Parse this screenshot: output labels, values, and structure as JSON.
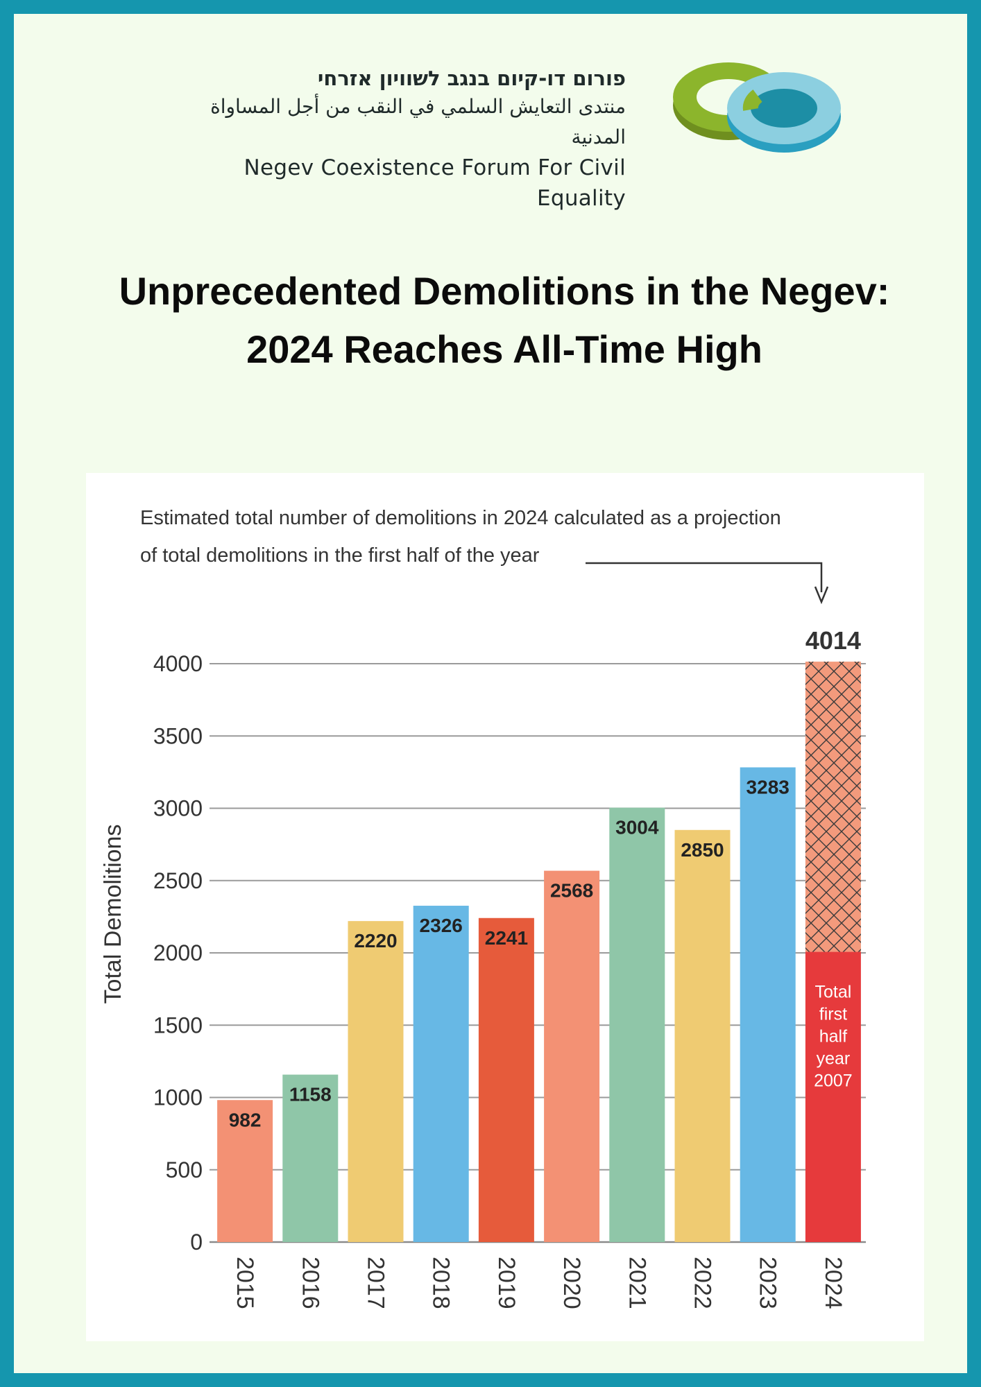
{
  "organization": {
    "name_hebrew": "פורום דו-קיום בנגב לשוויון אזרחי",
    "name_arabic": "منتدى التعايش السلمي في النقب من أجل المساواة المدنية",
    "name_english": "Negev Coexistence Forum For Civil Equality",
    "logo_colors": {
      "ring_green": "#8cb52c",
      "ring_blue": "#5bbcd4"
    }
  },
  "headline": {
    "line1": "Unprecedented Demolitions in the Negev:",
    "line2": "2024 Reaches All-Time High"
  },
  "chart_data": {
    "type": "bar",
    "annotation": {
      "line1": "Estimated total number of demolitions in 2024 calculated as a projection",
      "line2": "of total demolitions in the first half of the year"
    },
    "ylabel": "Total Demolitions",
    "ylim": [
      0,
      4000
    ],
    "yticks": [
      "0",
      "500",
      "1000",
      "1500",
      "2000",
      "2500",
      "3000",
      "3500",
      "4000"
    ],
    "grid": true,
    "categories": [
      "2015",
      "2016",
      "2017",
      "2018",
      "2019",
      "2020",
      "2021",
      "2022",
      "2023",
      "2024"
    ],
    "values": [
      982,
      1158,
      2220,
      2326,
      2241,
      2568,
      3004,
      2850,
      3283,
      4014
    ],
    "value_labels": [
      "982",
      "1158",
      "2220",
      "2326",
      "2241",
      "2568",
      "3004",
      "2850",
      "3283",
      "4014"
    ],
    "colors": [
      "#f39174",
      "#8fc6a8",
      "#efcb72",
      "#67b8e5",
      "#e65b3b",
      "#f39174",
      "#8fc6a8",
      "#efcb72",
      "#67b8e5",
      "#f39a7c"
    ],
    "first_half_2024": {
      "value": 2007,
      "color": "#e63a3c",
      "label_lines": [
        "Total",
        "first",
        "half",
        "year",
        "2007"
      ]
    },
    "projection_hatch_color": "#f39a7c"
  }
}
